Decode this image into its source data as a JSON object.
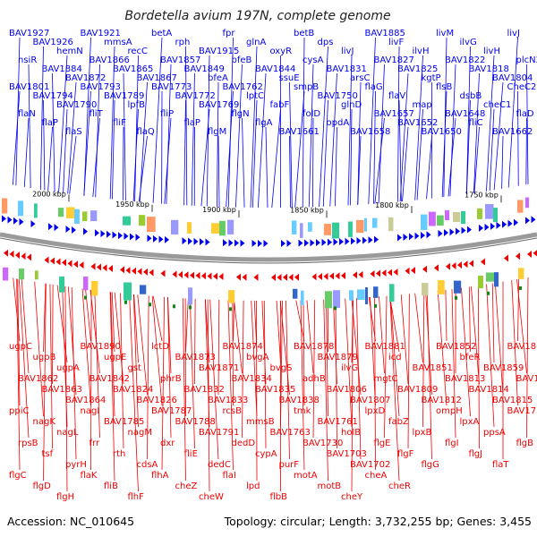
{
  "title": "Bordetella avium 197N, complete genome",
  "footer": {
    "accession": "Accession: NC_010645",
    "summary": "Topology: circular; Length: 3,732,255 bp; Genes: 3,455"
  },
  "colors": {
    "forward": "#0000ee",
    "reverse": "#ee0000",
    "backbone": "#999999",
    "rna": "#118811"
  },
  "ticks": [
    "2000 kbp",
    "1950 kbp",
    "1900 kbp",
    "1850 kbp",
    "1800 kbp",
    "1750 kbp"
  ],
  "forward_labels": [
    "BAV1927",
    "BAV1926",
    "hemN",
    "BAV1921",
    "mmsA",
    "recC",
    "betA",
    "rph",
    "BAV1915",
    "fpr",
    "glnA",
    "oxyR",
    "betB",
    "dps",
    "livJ",
    "BAV1885",
    "livF",
    "ilvH",
    "livM",
    "ilvG",
    "livH",
    "livJ",
    "nsiR",
    "BAV1884",
    "BAV1872",
    "BAV1866",
    "BAV1865",
    "BAV1867",
    "BAV1857",
    "BAV1849",
    "bfeA",
    "bfeB",
    "BAV1844",
    "ssuE",
    "cysA",
    "BAV1831",
    "arsC",
    "BAV1827",
    "BAV1825",
    "kgtP",
    "BAV1822",
    "BAV1818",
    "BAV1804",
    "plcN2",
    "BAV1801",
    "BAV1794",
    "BAV1790",
    "BAV1793",
    "BAV1789",
    "lpfB",
    "BAV1773",
    "BAV1772",
    "BAV1769",
    "BAV1762",
    "lptC",
    "fabF",
    "smpB",
    "BAV1750",
    "glnD",
    "flaG",
    "flaV",
    "map",
    "flsB",
    "dsbB",
    "cheC1",
    "CheC2",
    "flaN",
    "flaP",
    "flaS",
    "fliT",
    "fliF",
    "flaQ",
    "fliP",
    "flaP",
    "flgM",
    "flgN",
    "flgA",
    "BAV1661",
    "folD",
    "opdA",
    "BAV1658",
    "BAV1657",
    "BAV1652",
    "BAV1650",
    "BAV1648",
    "fliC",
    "BAV1662",
    "flaD"
  ],
  "reverse_labels": [
    "ugpC",
    "ugpB",
    "ugpA",
    "BAV1890",
    "ugpE",
    "gst",
    "lctD",
    "BAV1873",
    "BAV1871",
    "BAV1874",
    "bvgA",
    "bvgS",
    "BAV1878",
    "BAV1879",
    "ilvG",
    "BAV1881",
    "icd",
    "BAV1851",
    "BAV1852",
    "bfeR",
    "BAV1859",
    "BAV1861",
    "BAV1862",
    "BAV1863",
    "BAV1864",
    "BAV1842",
    "BAV1824",
    "BAV1826",
    "phrB",
    "BAV1832",
    "BAV1833",
    "BAV1834",
    "BAV1835",
    "BAV1838",
    "adhB",
    "BAV1806",
    "BAV1807",
    "mgtC",
    "BAV1809",
    "BAV1812",
    "BAV1813",
    "BAV1814",
    "BAV1815",
    "BAV1816",
    "ppiC",
    "nagK",
    "nagL",
    "nagI",
    "BAV1785",
    "nagM",
    "BAV1787",
    "BAV1788",
    "BAV1791",
    "rcsB",
    "mmsB",
    "BAV1763",
    "tmk",
    "BAV1761",
    "holB",
    "lpxD",
    "fabZ",
    "lpxB",
    "ompH",
    "lpxA",
    "ppsA",
    "BAV1752",
    "rpsB",
    "tsf",
    "pyrH",
    "frr",
    "rth",
    "cdsA",
    "dxr",
    "fliE",
    "dedC",
    "dedD",
    "cypA",
    "purF",
    "BAV1730",
    "BAV1703",
    "BAV1702",
    "flgE",
    "flgF",
    "flgG",
    "flgI",
    "flgJ",
    "flaT",
    "flgB",
    "flgC",
    "flgD",
    "flgH",
    "flaK",
    "fliB",
    "flhF",
    "flhA",
    "cheZ",
    "cheW",
    "flaI",
    "lpd",
    "flbB",
    "motA",
    "motB",
    "cheY",
    "cheA",
    "cheR"
  ]
}
